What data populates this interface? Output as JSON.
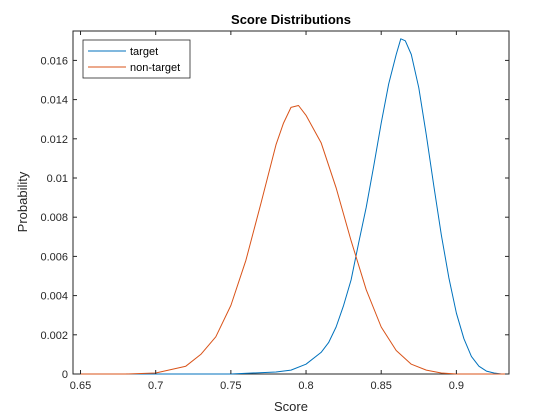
{
  "chart_data": {
    "type": "line",
    "title": "Score Distributions",
    "xlabel": "Score",
    "ylabel": "Probability",
    "xlim": [
      0.645,
      0.935
    ],
    "ylim": [
      0,
      0.0175
    ],
    "xticks": [
      0.65,
      0.7,
      0.75,
      0.8,
      0.85,
      0.9
    ],
    "xtick_labels": [
      "0.65",
      "0.7",
      "0.75",
      "0.8",
      "0.85",
      "0.9"
    ],
    "yticks": [
      0,
      0.002,
      0.004,
      0.006,
      0.008,
      0.01,
      0.012,
      0.014,
      0.016
    ],
    "ytick_labels": [
      "0",
      "0.002",
      "0.004",
      "0.006",
      "0.008",
      "0.01",
      "0.012",
      "0.014",
      "0.016"
    ],
    "grid": false,
    "legend_position": "top-left",
    "series": [
      {
        "name": "target",
        "color": "#0072BD",
        "x": [
          0.65,
          0.7,
          0.75,
          0.78,
          0.79,
          0.8,
          0.81,
          0.815,
          0.82,
          0.825,
          0.83,
          0.835,
          0.84,
          0.845,
          0.85,
          0.855,
          0.86,
          0.863,
          0.866,
          0.87,
          0.875,
          0.88,
          0.885,
          0.89,
          0.895,
          0.9,
          0.905,
          0.91,
          0.915,
          0.92,
          0.925,
          0.93,
          0.935
        ],
        "y": [
          0,
          0,
          0,
          0.0001,
          0.0002,
          0.0005,
          0.0011,
          0.0016,
          0.0024,
          0.0035,
          0.0048,
          0.0067,
          0.0085,
          0.0106,
          0.0128,
          0.0148,
          0.0163,
          0.0171,
          0.017,
          0.0163,
          0.0146,
          0.0122,
          0.0096,
          0.0071,
          0.0049,
          0.0031,
          0.0018,
          0.0009,
          0.0004,
          0.00015,
          5e-05,
          0,
          0
        ]
      },
      {
        "name": "non-target",
        "color": "#D95319",
        "x": [
          0.65,
          0.68,
          0.7,
          0.72,
          0.73,
          0.74,
          0.75,
          0.76,
          0.77,
          0.78,
          0.785,
          0.79,
          0.795,
          0.8,
          0.81,
          0.82,
          0.83,
          0.84,
          0.85,
          0.86,
          0.87,
          0.88,
          0.89,
          0.9,
          0.935
        ],
        "y": [
          0,
          0,
          5e-05,
          0.0004,
          0.001,
          0.0019,
          0.0035,
          0.0058,
          0.0087,
          0.0117,
          0.0128,
          0.0136,
          0.0137,
          0.0132,
          0.0118,
          0.0095,
          0.0068,
          0.0043,
          0.0024,
          0.0012,
          0.0005,
          0.0002,
          5e-05,
          0,
          0
        ]
      }
    ]
  }
}
